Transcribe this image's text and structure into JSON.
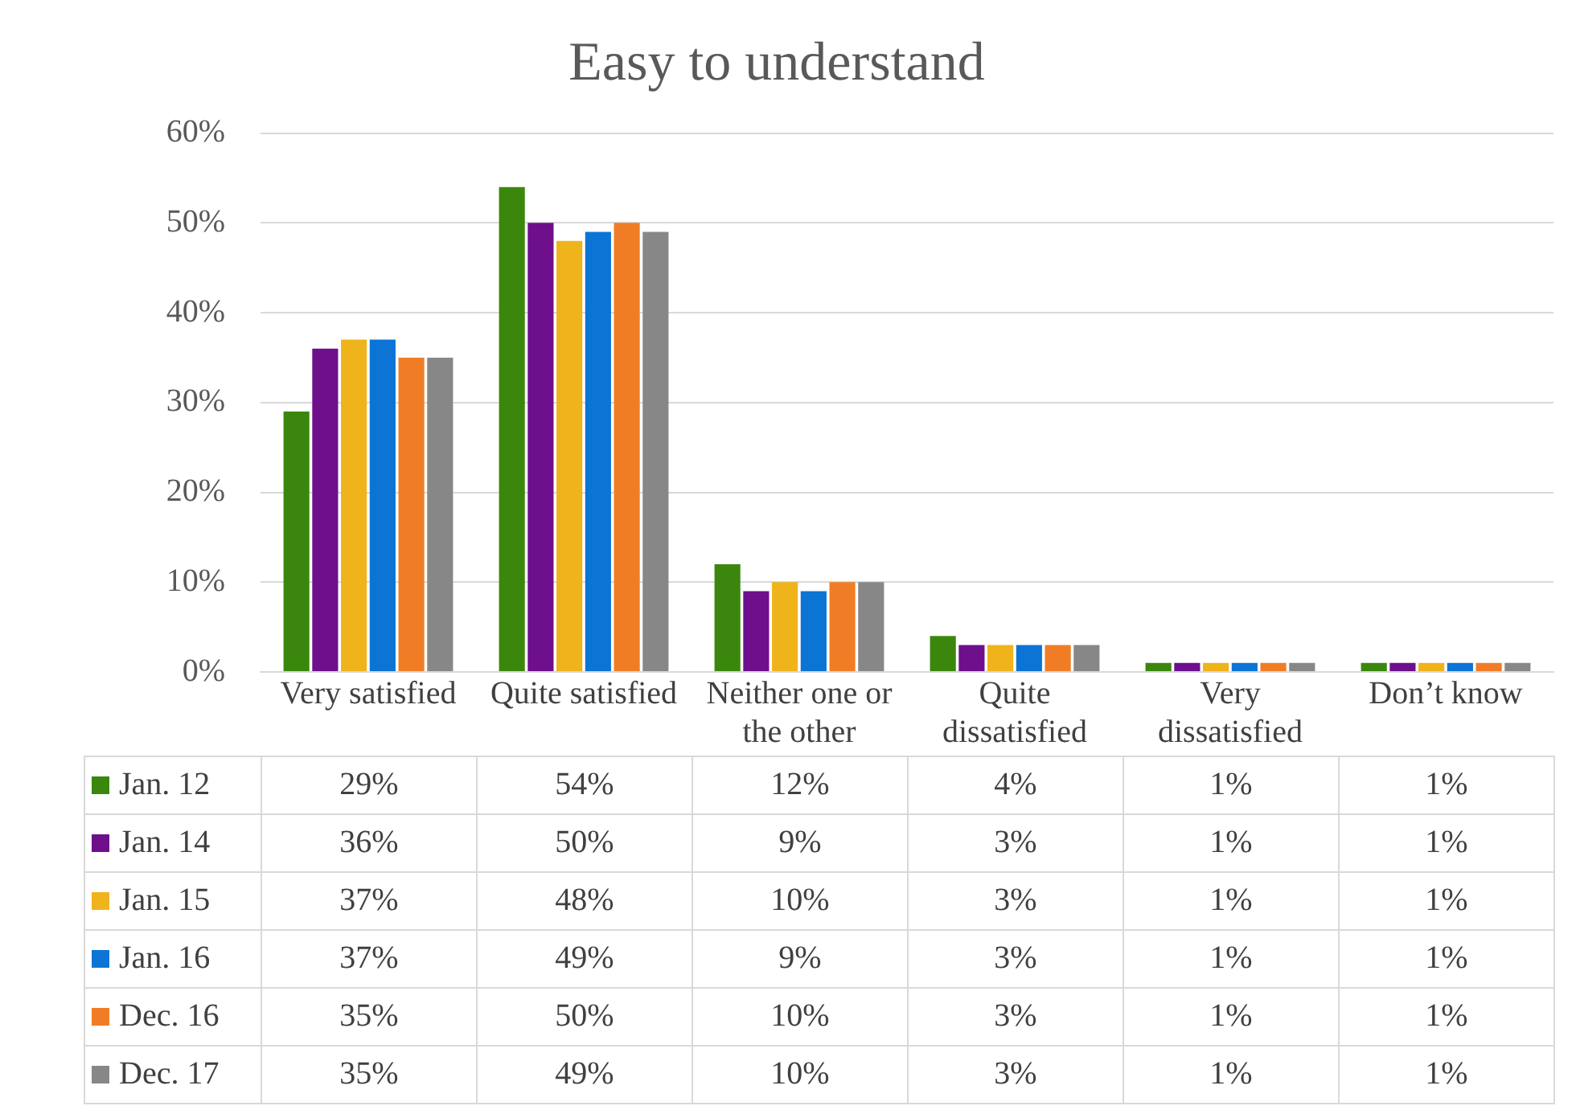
{
  "chart_data": {
    "type": "bar",
    "title": "Easy to understand",
    "categories": [
      "Very satisfied",
      "Quite satisfied",
      "Neither one or the other",
      "Quite dissatisfied",
      "Very dissatisfied",
      "Don’t know"
    ],
    "series": [
      {
        "name": "Jan. 12",
        "color": "#3b870e",
        "values": [
          29,
          54,
          12,
          4,
          1,
          1
        ],
        "value_labels": [
          "29%",
          "54%",
          "12%",
          "4%",
          "1%",
          "1%"
        ]
      },
      {
        "name": "Jan. 14",
        "color": "#6e0f8c",
        "values": [
          36,
          50,
          9,
          3,
          1,
          1
        ],
        "value_labels": [
          "36%",
          "50%",
          "9%",
          "3%",
          "1%",
          "1%"
        ]
      },
      {
        "name": "Jan. 15",
        "color": "#efb31c",
        "values": [
          37,
          48,
          10,
          3,
          1,
          1
        ],
        "value_labels": [
          "37%",
          "48%",
          "10%",
          "3%",
          "1%",
          "1%"
        ]
      },
      {
        "name": "Jan. 16",
        "color": "#0c74d4",
        "values": [
          37,
          49,
          9,
          3,
          1,
          1
        ],
        "value_labels": [
          "37%",
          "49%",
          "9%",
          "3%",
          "1%",
          "1%"
        ]
      },
      {
        "name": "Dec. 16",
        "color": "#f07d26",
        "values": [
          35,
          50,
          10,
          3,
          1,
          1
        ],
        "value_labels": [
          "35%",
          "50%",
          "10%",
          "3%",
          "1%",
          "1%"
        ]
      },
      {
        "name": "Dec. 17",
        "color": "#878787",
        "values": [
          35,
          49,
          10,
          3,
          1,
          1
        ],
        "value_labels": [
          "35%",
          "49%",
          "10%",
          "3%",
          "1%",
          "1%"
        ]
      }
    ],
    "ylim": [
      0,
      60
    ],
    "yticks": [
      {
        "value": 0,
        "label": "0%"
      },
      {
        "value": 10,
        "label": "10%"
      },
      {
        "value": 20,
        "label": "20%"
      },
      {
        "value": 30,
        "label": "30%"
      },
      {
        "value": 40,
        "label": "40%"
      },
      {
        "value": 50,
        "label": "50%"
      },
      {
        "value": 60,
        "label": "60%"
      }
    ],
    "grid": "y",
    "legend": "bottom"
  }
}
